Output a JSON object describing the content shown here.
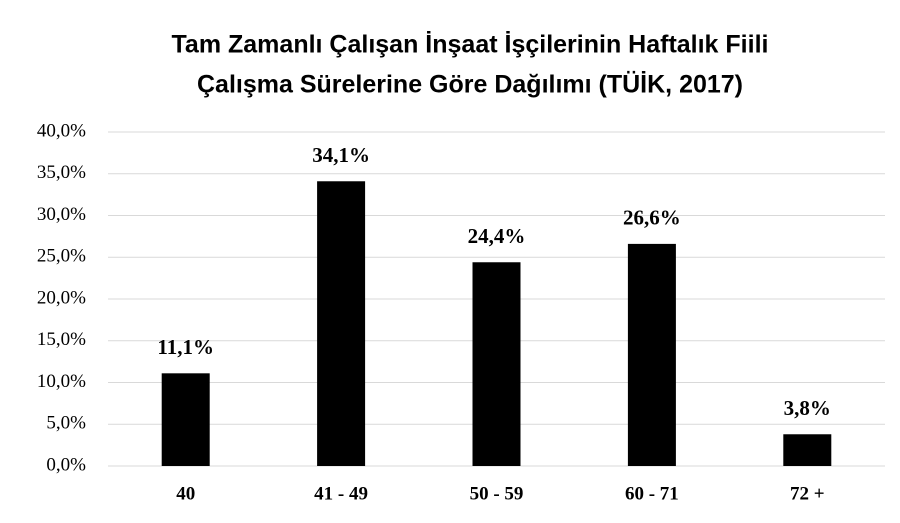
{
  "chart_data": {
    "type": "bar",
    "title": [
      "Tam Zamanlı Çalışan İnşaat İşçilerinin Haftalık Fiili",
      "Çalışma Sürelerine Göre Dağılımı (TÜİK, 2017)"
    ],
    "categories": [
      "40",
      "41 - 49",
      "50 - 59",
      "60 - 71",
      "72 +"
    ],
    "values": [
      11.1,
      34.1,
      24.4,
      26.6,
      3.8
    ],
    "value_labels": [
      "11,1%",
      "34,1%",
      "24,4%",
      "26,6%",
      "3,8%"
    ],
    "color": "#000000",
    "ylim": [
      0,
      40
    ],
    "yticks": [
      {
        "value": 0,
        "label": "0,0%"
      },
      {
        "value": 5,
        "label": "5,0%"
      },
      {
        "value": 10,
        "label": "10,0%"
      },
      {
        "value": 15,
        "label": "15,0%"
      },
      {
        "value": 20,
        "label": "20,0%"
      },
      {
        "value": 25,
        "label": "25,0%"
      },
      {
        "value": 30,
        "label": "30,0%"
      },
      {
        "value": 35,
        "label": "35,0%"
      },
      {
        "value": 40,
        "label": "40,0%"
      }
    ],
    "grid": true
  }
}
